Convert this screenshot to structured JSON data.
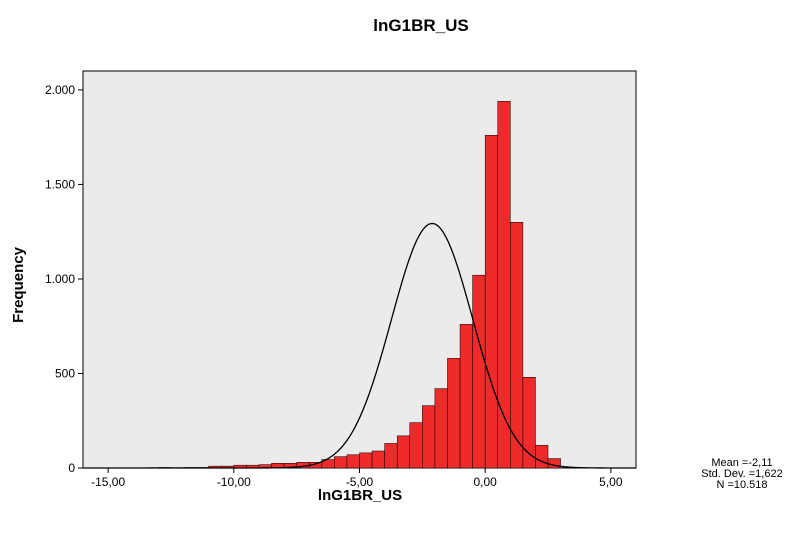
{
  "chart_data": {
    "type": "bar",
    "subtype": "histogram",
    "title": "lnG1BR_US",
    "xlabel": "lnG1BR_US",
    "ylabel": "Frequency",
    "xlim": [
      -16.0,
      6.0
    ],
    "ylim": [
      0,
      2100
    ],
    "bin_width": 0.5,
    "bin_starts": [
      -13.5,
      -13.0,
      -12.5,
      -12.0,
      -11.5,
      -11.0,
      -10.5,
      -10.0,
      -9.5,
      -9.0,
      -8.5,
      -8.0,
      -7.5,
      -7.0,
      -6.5,
      -6.0,
      -5.5,
      -5.0,
      -4.5,
      -4.0,
      -3.5,
      -3.0,
      -2.5,
      -2.0,
      -1.5,
      -1.0,
      -0.5,
      0.0,
      0.5,
      1.0,
      1.5,
      2.0,
      2.5
    ],
    "values": [
      2,
      3,
      2,
      3,
      3,
      10,
      10,
      15,
      15,
      18,
      25,
      25,
      30,
      30,
      45,
      60,
      70,
      80,
      90,
      130,
      170,
      240,
      330,
      420,
      580,
      760,
      1020,
      1760,
      1940,
      1300,
      480,
      120,
      50
    ],
    "x_ticks": [
      -15,
      -10,
      -5,
      0,
      5
    ],
    "x_tick_labels": [
      "-15,00",
      "-10,00",
      "-5,00",
      "0,00",
      "5,00"
    ],
    "y_ticks": [
      0,
      500,
      1000,
      1500,
      2000
    ],
    "y_tick_labels": [
      "0",
      "500",
      "1.000",
      "1.500",
      "2.000"
    ],
    "normal_curve": {
      "mean": -2.11,
      "std_dev": 1.622,
      "n": 10518
    },
    "stats": {
      "mean_label": "Mean =-2,11",
      "std_label": "Std. Dev. =1,622",
      "n_label": "N =10.518"
    },
    "grid": false,
    "colors": {
      "bar_fill": "#ee2a2a",
      "bar_stroke": "#000000",
      "plot_background": "#ebebeb",
      "curve": "#000000"
    }
  }
}
